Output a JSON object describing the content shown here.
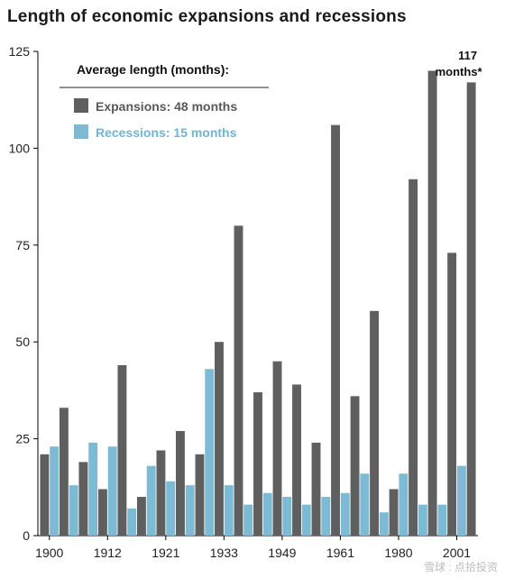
{
  "chart_data": {
    "type": "bar",
    "title": "Length of economic expansions and recessions",
    "xlabel": "",
    "ylabel": "",
    "ylim": [
      0,
      125
    ],
    "yticks": [
      0,
      25,
      50,
      75,
      100,
      125
    ],
    "x_tick_labels": [
      {
        "label": "1900",
        "index": 0
      },
      {
        "label": "1912",
        "index": 3
      },
      {
        "label": "1921",
        "index": 6
      },
      {
        "label": "1933",
        "index": 9
      },
      {
        "label": "1949",
        "index": 12
      },
      {
        "label": "1961",
        "index": 15
      },
      {
        "label": "1980",
        "index": 18
      },
      {
        "label": "2001",
        "index": 21
      }
    ],
    "grid": false,
    "legend": {
      "placement": "top-left",
      "title": "Average length (months):",
      "entries": [
        {
          "name": "Expansions: 48 months",
          "series": "expansions"
        },
        {
          "name": "Recessions: 15 months",
          "series": "recessions"
        }
      ]
    },
    "colors": {
      "expansions": "#5f5f5f",
      "recessions": "#7dbad3",
      "expansions_text": "#595959",
      "recessions_text": "#6fb6d1"
    },
    "series": [
      {
        "key": "expansions",
        "values": [
          21,
          19,
          44,
          22,
          21,
          80,
          45,
          24,
          36,
          12,
          120,
          117
        ]
      },
      {
        "key": "recessions",
        "values": [
          23,
          13,
          24,
          23,
          7,
          18,
          14,
          13,
          43,
          13,
          8,
          11,
          10,
          8,
          10,
          11,
          16,
          6,
          16,
          8,
          8,
          18
        ]
      },
      {
        "key": "other_expansions",
        "values": [
          33,
          12,
          10,
          27,
          50,
          37,
          39,
          106,
          58,
          92,
          73
        ]
      }
    ],
    "bars_sequence": [
      {
        "s": "E",
        "v": 21
      },
      {
        "s": "R",
        "v": 23
      },
      {
        "s": "E",
        "v": 33
      },
      {
        "s": "R",
        "v": 13
      },
      {
        "s": "E",
        "v": 19
      },
      {
        "s": "R",
        "v": 24
      },
      {
        "s": "E",
        "v": 12
      },
      {
        "s": "R",
        "v": 23
      },
      {
        "s": "E",
        "v": 44
      },
      {
        "s": "R",
        "v": 7
      },
      {
        "s": "E",
        "v": 10
      },
      {
        "s": "R",
        "v": 18
      },
      {
        "s": "E",
        "v": 22
      },
      {
        "s": "R",
        "v": 14
      },
      {
        "s": "E",
        "v": 27
      },
      {
        "s": "R",
        "v": 13
      },
      {
        "s": "E",
        "v": 21
      },
      {
        "s": "R",
        "v": 43
      },
      {
        "s": "E",
        "v": 50
      },
      {
        "s": "R",
        "v": 13
      },
      {
        "s": "E",
        "v": 80
      },
      {
        "s": "R",
        "v": 8
      },
      {
        "s": "E",
        "v": 37
      },
      {
        "s": "R",
        "v": 11
      },
      {
        "s": "E",
        "v": 45
      },
      {
        "s": "R",
        "v": 10
      },
      {
        "s": "E",
        "v": 39
      },
      {
        "s": "R",
        "v": 8
      },
      {
        "s": "E",
        "v": 24
      },
      {
        "s": "R",
        "v": 10
      },
      {
        "s": "E",
        "v": 106
      },
      {
        "s": "R",
        "v": 11
      },
      {
        "s": "E",
        "v": 36
      },
      {
        "s": "R",
        "v": 16
      },
      {
        "s": "E",
        "v": 58
      },
      {
        "s": "R",
        "v": 6
      },
      {
        "s": "E",
        "v": 12
      },
      {
        "s": "R",
        "v": 16
      },
      {
        "s": "E",
        "v": 92
      },
      {
        "s": "R",
        "v": 8
      },
      {
        "s": "E",
        "v": 120
      },
      {
        "s": "R",
        "v": 8
      },
      {
        "s": "E",
        "v": 73
      },
      {
        "s": "R",
        "v": 18
      },
      {
        "s": "E",
        "v": 117
      }
    ],
    "annotation": {
      "line1": "117",
      "line2": "months*",
      "bar_index": 44
    }
  },
  "watermark": "雪球 : 点拾投资"
}
